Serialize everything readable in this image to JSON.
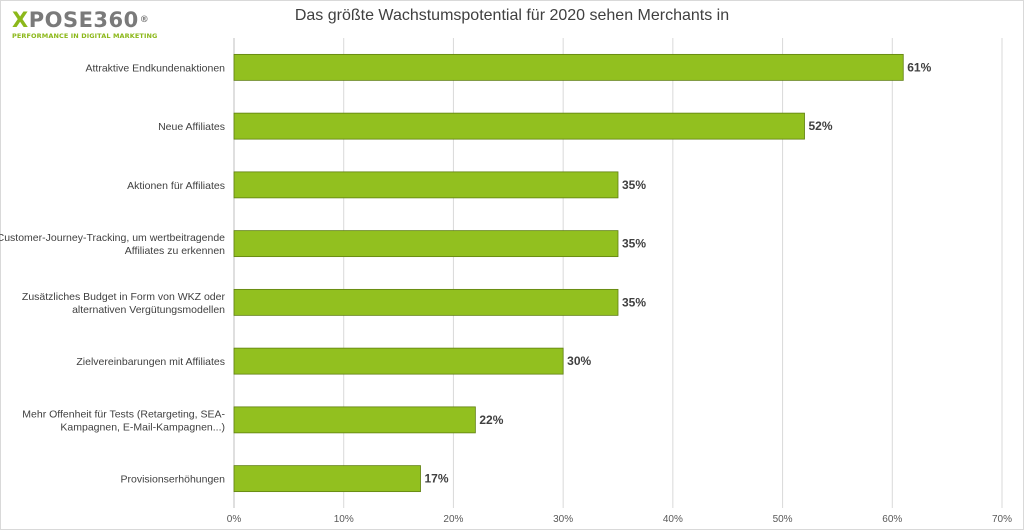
{
  "brand": {
    "logo_x": "X",
    "logo_rest": "POSE360",
    "logo_reg": "®",
    "tagline": "PERFORMANCE IN DIGITAL MARKETING"
  },
  "chart_data": {
    "type": "bar",
    "orientation": "horizontal",
    "title": "Das größte Wachstumspotential für 2020 sehen Merchants in",
    "categories": [
      [
        "Attraktive Endkundenaktionen"
      ],
      [
        "Neue Affiliates"
      ],
      [
        "Aktionen für Affiliates"
      ],
      [
        "Customer-Journey-Tracking, um wertbeitragende",
        "Affiliates zu erkennen"
      ],
      [
        "Zusätzliches Budget in Form von WKZ oder",
        "alternativen Vergütungsmodellen"
      ],
      [
        "Zielvereinbarungen mit Affiliates"
      ],
      [
        "Mehr Offenheit für Tests (Retargeting, SEA-",
        "Kampagnen, E-Mail-Kampagnen...)"
      ],
      [
        "Provisionserhöhungen"
      ]
    ],
    "values": [
      61,
      52,
      35,
      35,
      35,
      30,
      22,
      17
    ],
    "value_labels": [
      "61%",
      "52%",
      "35%",
      "35%",
      "35%",
      "30%",
      "22%",
      "17%"
    ],
    "xlim": [
      0,
      70
    ],
    "x_ticks": [
      0,
      10,
      20,
      30,
      40,
      50,
      60,
      70
    ],
    "x_tick_labels": [
      "0%",
      "10%",
      "20%",
      "30%",
      "40%",
      "50%",
      "60%",
      "70%"
    ],
    "grid": true,
    "legend": "none",
    "bar_color": "#92c01f",
    "bar_edge_color": "#5f7f10"
  }
}
